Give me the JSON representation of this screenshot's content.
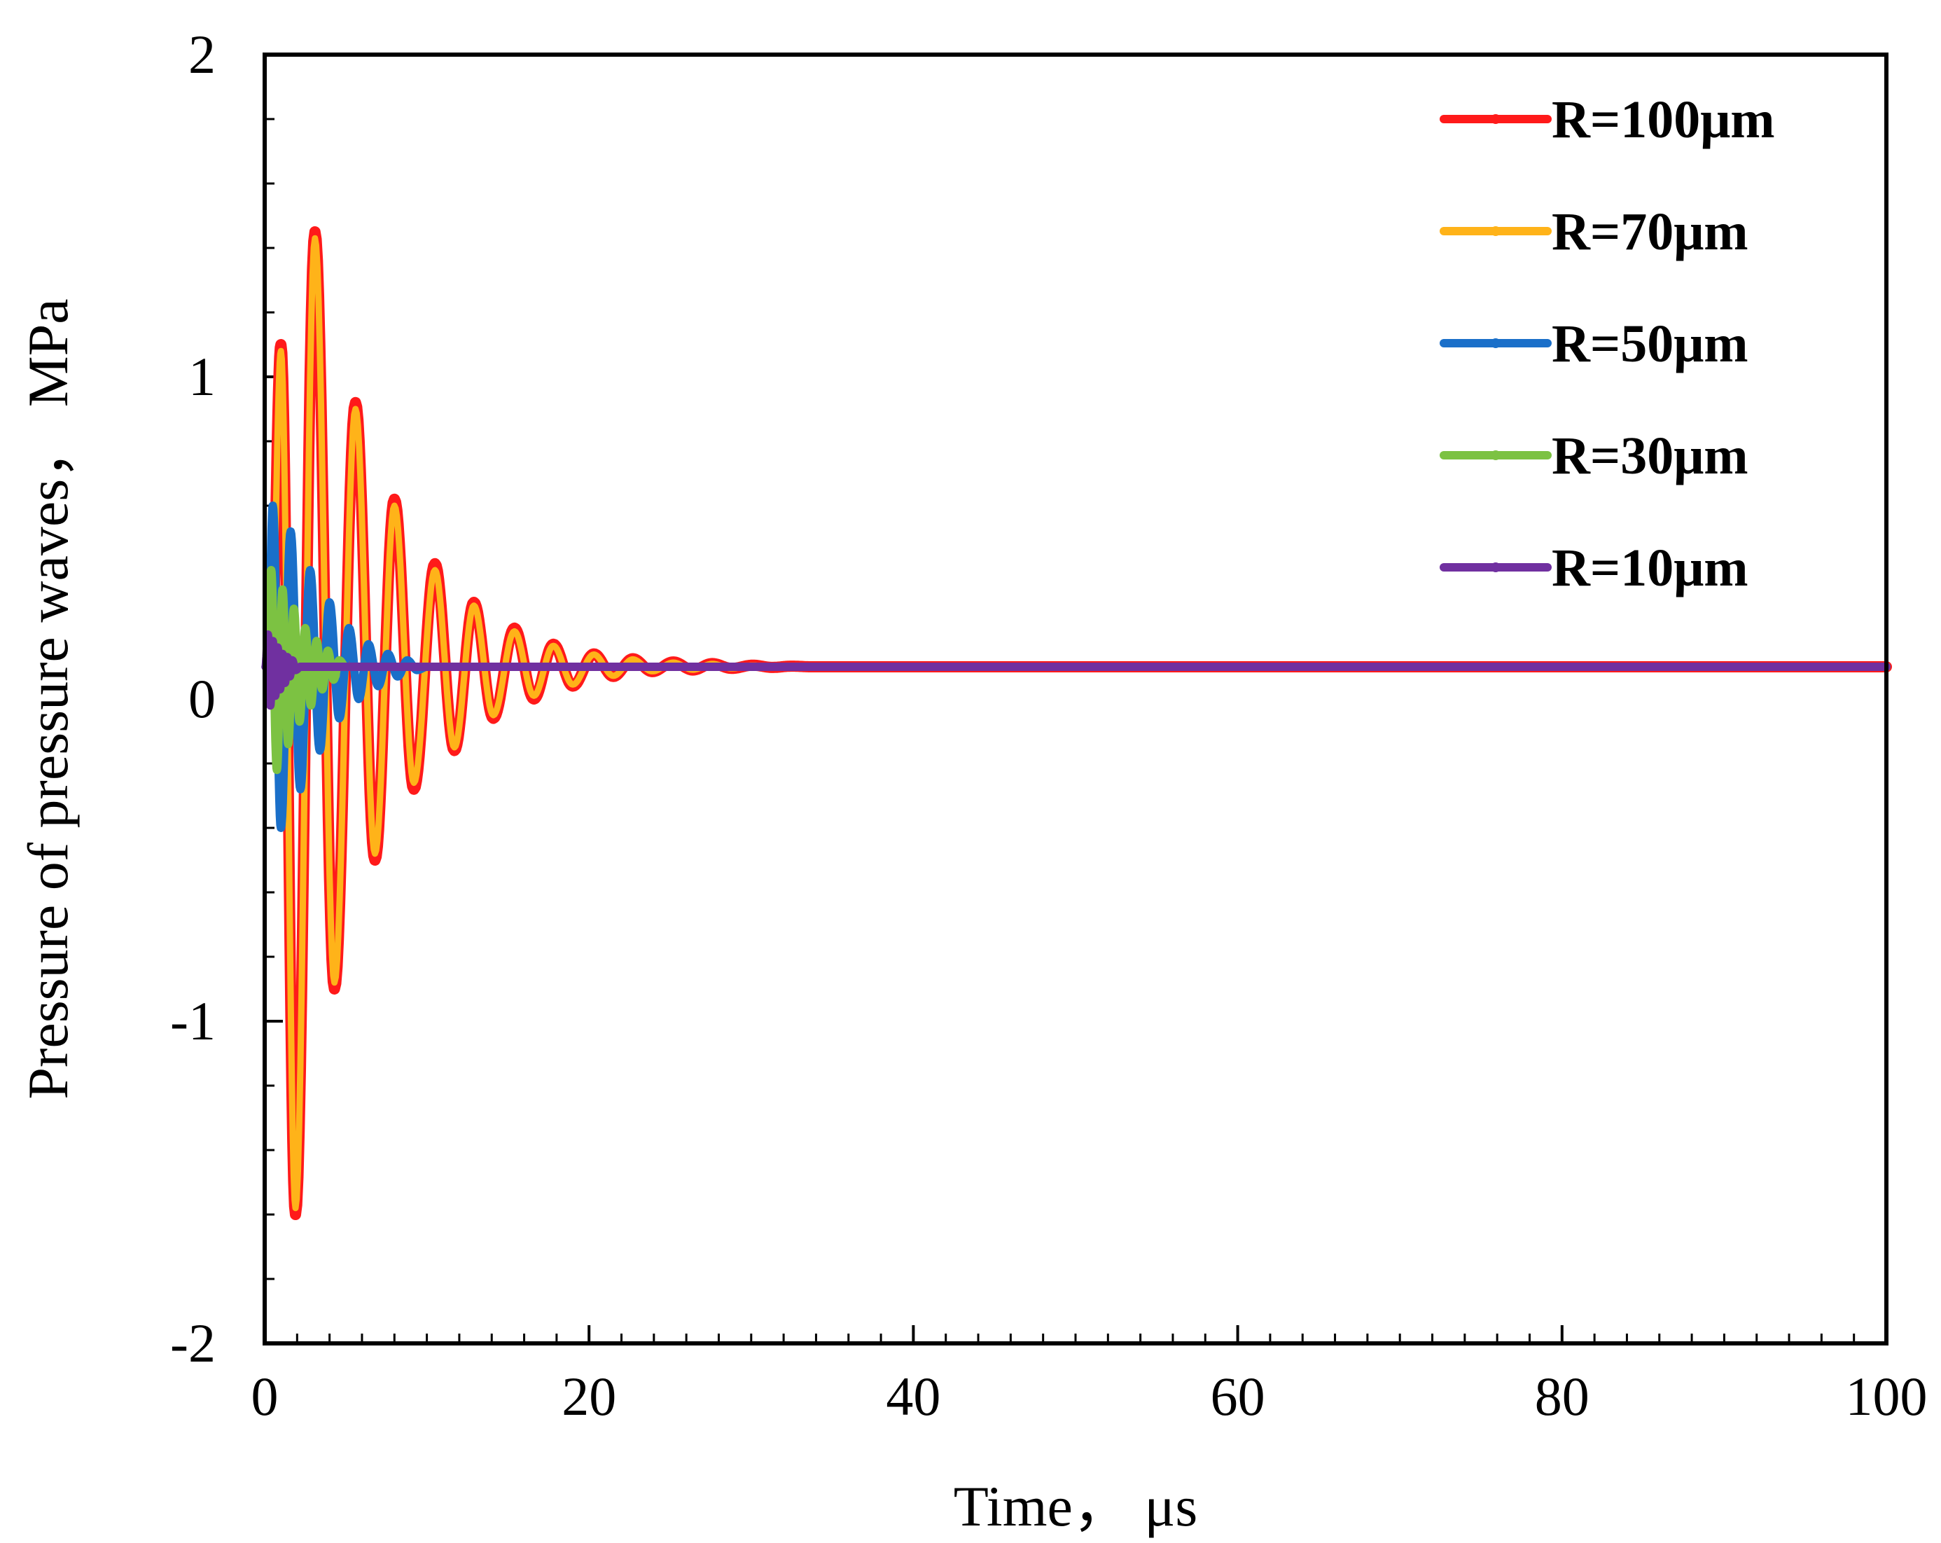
{
  "chart_data": {
    "type": "line",
    "title": "",
    "xlabel": "Time，  μs",
    "ylabel": "Pressure of pressure waves，  MPa",
    "xlim": [
      0,
      100
    ],
    "ylim": [
      -2,
      2
    ],
    "x_ticks": [
      0,
      20,
      40,
      60,
      80,
      100
    ],
    "x_tick_labels": [
      "0",
      "20",
      "40",
      "60",
      "80",
      "100"
    ],
    "y_ticks": [
      -2,
      -1,
      0,
      1,
      2
    ],
    "y_tick_labels": [
      "-2",
      "-1",
      "0",
      "1",
      "2"
    ],
    "grid": false,
    "legend_position": "top-right",
    "baseline_pressure": 0.1,
    "series": [
      {
        "name": "R=100μm",
        "color": "#ff1a1a",
        "marker": "dot",
        "peaks_x": [
          0.4,
          1.0,
          1.9,
          3.1,
          4.3,
          5.6,
          6.8,
          8.0,
          9.2,
          10.5,
          11.7,
          12.9,
          14.1,
          15.4,
          16.6,
          17.8,
          19.0,
          20.3,
          21.5,
          22.7,
          23.9,
          25.2,
          26.4,
          27.6,
          28.8,
          30.1,
          31.3,
          32.5,
          33.7
        ],
        "peaks_y": [
          0.1,
          1.1,
          -1.6,
          1.45,
          -0.9,
          0.92,
          -0.5,
          0.62,
          -0.28,
          0.42,
          -0.16,
          0.3,
          -0.06,
          0.22,
          0.0,
          0.17,
          0.04,
          0.14,
          0.07,
          0.125,
          0.085,
          0.115,
          0.09,
          0.11,
          0.095,
          0.105,
          0.098,
          0.102,
          0.1
        ]
      },
      {
        "name": "R=70μm",
        "color": "#ffb319",
        "marker": "dot",
        "peaks_x": [
          0.4,
          1.0,
          1.9,
          3.1,
          4.3,
          5.6,
          6.8,
          8.0,
          9.2,
          10.5,
          11.7,
          12.9,
          14.1,
          15.4,
          16.6,
          17.8,
          19.0,
          20.3,
          21.5,
          22.7,
          23.9,
          25.2,
          26.4,
          27.6,
          28.8,
          30.1,
          31.3,
          32.5,
          33.7
        ],
        "peaks_y": [
          0.1,
          1.08,
          -1.58,
          1.43,
          -0.88,
          0.9,
          -0.48,
          0.6,
          -0.26,
          0.4,
          -0.15,
          0.29,
          -0.05,
          0.21,
          0.01,
          0.165,
          0.045,
          0.138,
          0.072,
          0.123,
          0.086,
          0.113,
          0.091,
          0.109,
          0.095,
          0.104,
          0.098,
          0.101,
          0.1
        ]
      },
      {
        "name": "R=50μm",
        "color": "#1a6fc9",
        "marker": "dot",
        "peaks_x": [
          0.2,
          0.5,
          1.0,
          1.6,
          2.2,
          2.8,
          3.4,
          4.0,
          4.6,
          5.2,
          5.8,
          6.4,
          7.0,
          7.6,
          8.2,
          8.8,
          9.4,
          10.0
        ],
        "peaks_y": [
          0.1,
          0.6,
          -0.4,
          0.52,
          -0.28,
          0.4,
          -0.16,
          0.3,
          -0.06,
          0.22,
          0.0,
          0.17,
          0.04,
          0.14,
          0.07,
          0.12,
          0.09,
          0.1
        ]
      },
      {
        "name": "R=30μm",
        "color": "#7cc242",
        "marker": "dot",
        "peaks_x": [
          0.1,
          0.4,
          0.75,
          1.1,
          1.45,
          1.8,
          2.15,
          2.5,
          2.85,
          3.2,
          3.55,
          3.9,
          4.25,
          4.6,
          5.0
        ],
        "peaks_y": [
          0.1,
          0.4,
          -0.22,
          0.34,
          -0.14,
          0.28,
          -0.07,
          0.22,
          -0.02,
          0.18,
          0.03,
          0.15,
          0.06,
          0.12,
          0.1
        ]
      },
      {
        "name": "R=10μm",
        "color": "#7030a0",
        "marker": "dot",
        "peaks_x": [
          0.05,
          0.2,
          0.35,
          0.5,
          0.65,
          0.8,
          0.95,
          1.1,
          1.25,
          1.4,
          1.55,
          1.7,
          1.9,
          2.2
        ],
        "peaks_y": [
          0.1,
          0.2,
          -0.02,
          0.18,
          0.01,
          0.16,
          0.03,
          0.14,
          0.05,
          0.13,
          0.07,
          0.12,
          0.09,
          0.1
        ]
      }
    ]
  }
}
